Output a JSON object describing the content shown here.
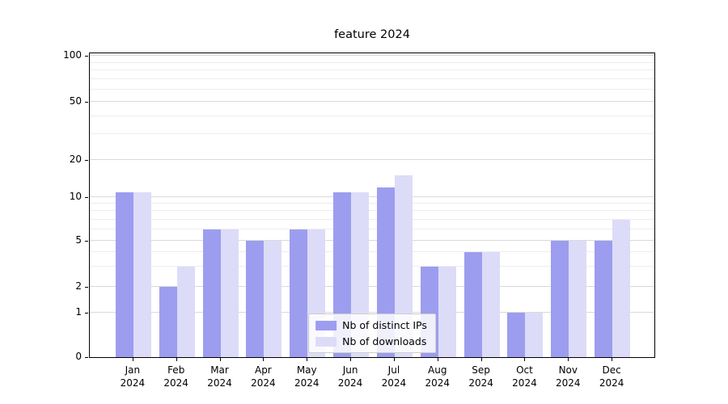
{
  "chart_data": {
    "type": "bar",
    "title": "feature 2024",
    "xlabel": "",
    "ylabel": "",
    "y_scale": "symlog",
    "ylim": [
      0,
      100
    ],
    "y_ticks": [
      0,
      1,
      2,
      5,
      10,
      20,
      50,
      100
    ],
    "y_minor_ticks": [
      3,
      4,
      6,
      7,
      8,
      9,
      30,
      40,
      60,
      70,
      80,
      90
    ],
    "grid": "horizontal major and minor, on",
    "legend_position": "lower center",
    "months": [
      "Jan",
      "Feb",
      "Mar",
      "Apr",
      "May",
      "Jun",
      "Jul",
      "Aug",
      "Sep",
      "Oct",
      "Nov",
      "Dec"
    ],
    "year_label": "2024",
    "categories": [
      "Jan 2024",
      "Feb 2024",
      "Mar 2024",
      "Apr 2024",
      "May 2024",
      "Jun 2024",
      "Jul 2024",
      "Aug 2024",
      "Sep 2024",
      "Oct 2024",
      "Nov 2024",
      "Dec 2024"
    ],
    "series": [
      {
        "name": "Nb of distinct IPs",
        "color": "#9d9df0",
        "values": [
          11,
          2,
          6,
          5,
          6,
          11,
          12,
          3,
          4,
          1,
          5,
          5
        ]
      },
      {
        "name": "Nb of downloads",
        "color": "#dcdcf8",
        "values": [
          11,
          3,
          6,
          5,
          6,
          11,
          15,
          3,
          4,
          1,
          5,
          7
        ]
      }
    ]
  }
}
